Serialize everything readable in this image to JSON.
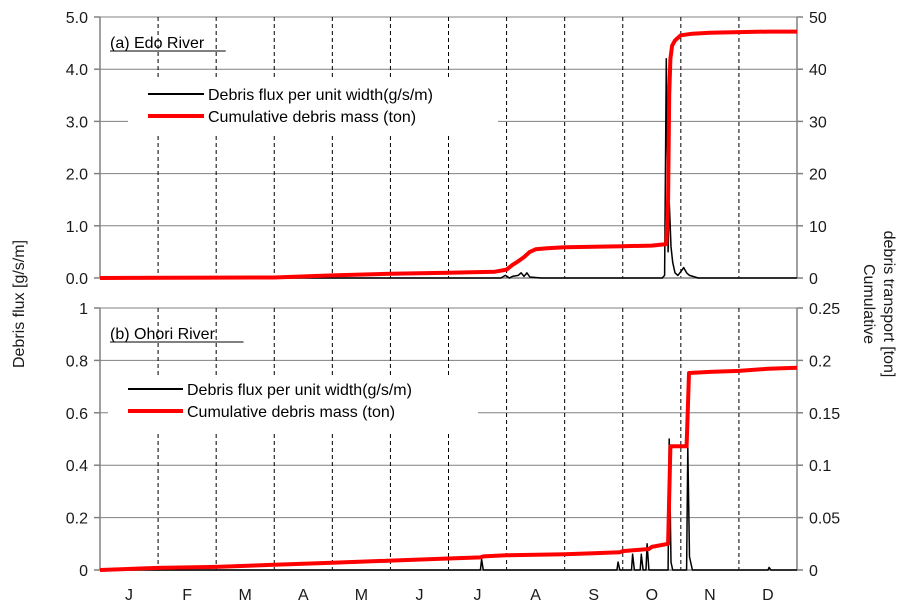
{
  "axis_titles": {
    "left": "Debris flux [g/s/m]",
    "right_line1": "Cumulative",
    "right_line2": "debris transport [ton]"
  },
  "legend_labels": {
    "flux": "Debris flux per unit width(g/s/m)",
    "cumulative": "Cumulative debris mass (ton)"
  },
  "colors": {
    "flux": "#000000",
    "cumulative": "#ff0000",
    "grid": "#808080",
    "axis": "#808080"
  },
  "chart_data": [
    {
      "type": "line",
      "title": "(a) Edo River",
      "months": [
        "J",
        "F",
        "M",
        "A",
        "M",
        "J",
        "J",
        "A",
        "S",
        "O",
        "N",
        "D"
      ],
      "xlim": [
        0,
        12
      ],
      "ylim_left": [
        0,
        5
      ],
      "yticks_left": [
        "0.0",
        "1.0",
        "2.0",
        "3.0",
        "4.0",
        "5.0"
      ],
      "ylim_right": [
        0,
        50
      ],
      "yticks_right": [
        "0",
        "10",
        "20",
        "30",
        "40",
        "50"
      ],
      "series": [
        {
          "name": "Debris flux per unit width(g/s/m)",
          "axis": "left",
          "x": [
            0,
            6.9,
            6.98,
            7.05,
            7.1,
            7.2,
            7.25,
            7.3,
            7.35,
            7.4,
            7.6,
            8.0,
            9.0,
            9.68,
            9.72,
            9.75,
            9.78,
            9.8,
            9.83,
            9.86,
            9.9,
            9.95,
            10.0,
            10.05,
            10.1,
            10.15,
            10.3,
            12
          ],
          "values": [
            0,
            0,
            0.05,
            0,
            0.03,
            0.05,
            0.1,
            0.03,
            0.1,
            0.02,
            0,
            0,
            0,
            0,
            0.05,
            4.2,
            0.5,
            1.5,
            0.6,
            0.3,
            0.1,
            0.05,
            0.12,
            0.2,
            0.1,
            0.05,
            0,
            0
          ]
        },
        {
          "name": "Cumulative debris mass (ton)",
          "axis": "right",
          "x": [
            0,
            3,
            4,
            5,
            6,
            6.8,
            7.0,
            7.1,
            7.2,
            7.3,
            7.4,
            7.5,
            7.7,
            8.0,
            8.5,
            9.0,
            9.5,
            9.75,
            9.78,
            9.8,
            9.82,
            9.85,
            9.9,
            10.0,
            10.2,
            10.5,
            11.0,
            11.5,
            12
          ],
          "values": [
            0,
            0.1,
            0.5,
            0.8,
            1.0,
            1.2,
            1.6,
            2.5,
            3.2,
            4.0,
            5.0,
            5.5,
            5.7,
            5.9,
            6.0,
            6.1,
            6.2,
            6.5,
            15,
            35,
            42,
            44.5,
            45.5,
            46.5,
            46.8,
            47.0,
            47.1,
            47.2,
            47.2
          ]
        }
      ]
    },
    {
      "type": "line",
      "title": "(b) Ohori River",
      "months": [
        "J",
        "F",
        "M",
        "A",
        "M",
        "J",
        "J",
        "A",
        "S",
        "O",
        "N",
        "D"
      ],
      "xlim": [
        0,
        12
      ],
      "ylim_left": [
        0,
        1
      ],
      "yticks_left": [
        "0",
        "0.2",
        "0.4",
        "0.6",
        "0.8",
        "1"
      ],
      "ylim_right": [
        0,
        0.25
      ],
      "yticks_right": [
        "0",
        "0.05",
        "0.1",
        "0.15",
        "0.2",
        "0.25"
      ],
      "series": [
        {
          "name": "Debris flux per unit width(g/s/m)",
          "axis": "left",
          "x": [
            0,
            6.55,
            6.57,
            6.6,
            8.9,
            8.92,
            8.95,
            9.15,
            9.17,
            9.2,
            9.3,
            9.32,
            9.35,
            9.4,
            9.42,
            9.45,
            9.78,
            9.8,
            9.83,
            9.86,
            10.1,
            10.12,
            10.15,
            10.2,
            11.5,
            11.52,
            11.55,
            12
          ],
          "values": [
            0,
            0,
            0.04,
            0,
            0,
            0.03,
            0,
            0,
            0.06,
            0,
            0,
            0.06,
            0,
            0,
            0.1,
            0,
            0,
            0.5,
            0.03,
            0,
            0,
            0.47,
            0.05,
            0,
            0,
            0.01,
            0,
            0
          ]
        },
        {
          "name": "Cumulative debris mass (ton)",
          "axis": "right",
          "x": [
            0,
            1,
            2,
            3,
            4,
            5,
            6,
            6.55,
            6.6,
            7.0,
            8.0,
            8.5,
            8.95,
            9.0,
            9.45,
            9.5,
            9.78,
            9.82,
            10.1,
            10.14,
            10.5,
            11.0,
            11.5,
            12
          ],
          "values": [
            0,
            0.002,
            0.003,
            0.005,
            0.007,
            0.009,
            0.011,
            0.012,
            0.013,
            0.014,
            0.015,
            0.016,
            0.017,
            0.018,
            0.02,
            0.022,
            0.025,
            0.118,
            0.118,
            0.188,
            0.189,
            0.19,
            0.192,
            0.193
          ]
        }
      ]
    }
  ]
}
